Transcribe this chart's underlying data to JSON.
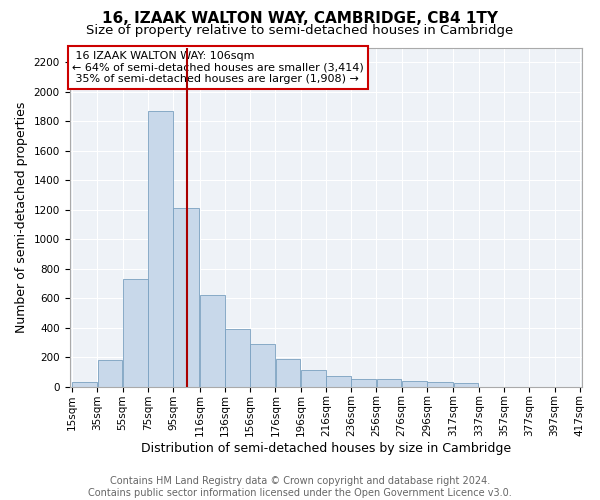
{
  "title1": "16, IZAAK WALTON WAY, CAMBRIDGE, CB4 1TY",
  "title2": "Size of property relative to semi-detached houses in Cambridge",
  "xlabel": "Distribution of semi-detached houses by size in Cambridge",
  "ylabel": "Number of semi-detached properties",
  "footnote": "Contains HM Land Registry data © Crown copyright and database right 2024.\nContains public sector information licensed under the Open Government Licence v3.0.",
  "annotation_line1": "16 IZAAK WALTON WAY: 106sqm",
  "annotation_line2": "← 64% of semi-detached houses are smaller (3,414)",
  "annotation_line3": "35% of semi-detached houses are larger (1,908) →",
  "bin_edges": [
    15,
    35,
    55,
    75,
    95,
    116,
    136,
    156,
    176,
    196,
    216,
    236,
    256,
    276,
    296,
    317,
    337,
    357,
    377,
    397,
    417
  ],
  "bin_labels": [
    "15sqm",
    "35sqm",
    "55sqm",
    "75sqm",
    "95sqm",
    "116sqm",
    "136sqm",
    "156sqm",
    "176sqm",
    "196sqm",
    "216sqm",
    "236sqm",
    "256sqm",
    "276sqm",
    "296sqm",
    "317sqm",
    "337sqm",
    "357sqm",
    "377sqm",
    "397sqm",
    "417sqm"
  ],
  "counts": [
    30,
    180,
    730,
    1870,
    1210,
    620,
    390,
    290,
    185,
    110,
    75,
    55,
    50,
    40,
    30,
    25,
    0,
    0,
    0,
    0
  ],
  "ylim": [
    0,
    2300
  ],
  "yticks": [
    0,
    200,
    400,
    600,
    800,
    1000,
    1200,
    1400,
    1600,
    1800,
    2000,
    2200
  ],
  "vline_x": 106,
  "bar_color": "#c8d8ea",
  "bar_edge_color": "#7aa0c0",
  "vline_color": "#aa0000",
  "annotation_box_edgecolor": "#cc0000",
  "bg_color": "#eef2f7",
  "grid_color": "#ffffff",
  "title_fontsize": 11,
  "subtitle_fontsize": 9.5,
  "axis_label_fontsize": 9,
  "tick_fontsize": 7.5,
  "annotation_fontsize": 8,
  "footnote_fontsize": 7
}
